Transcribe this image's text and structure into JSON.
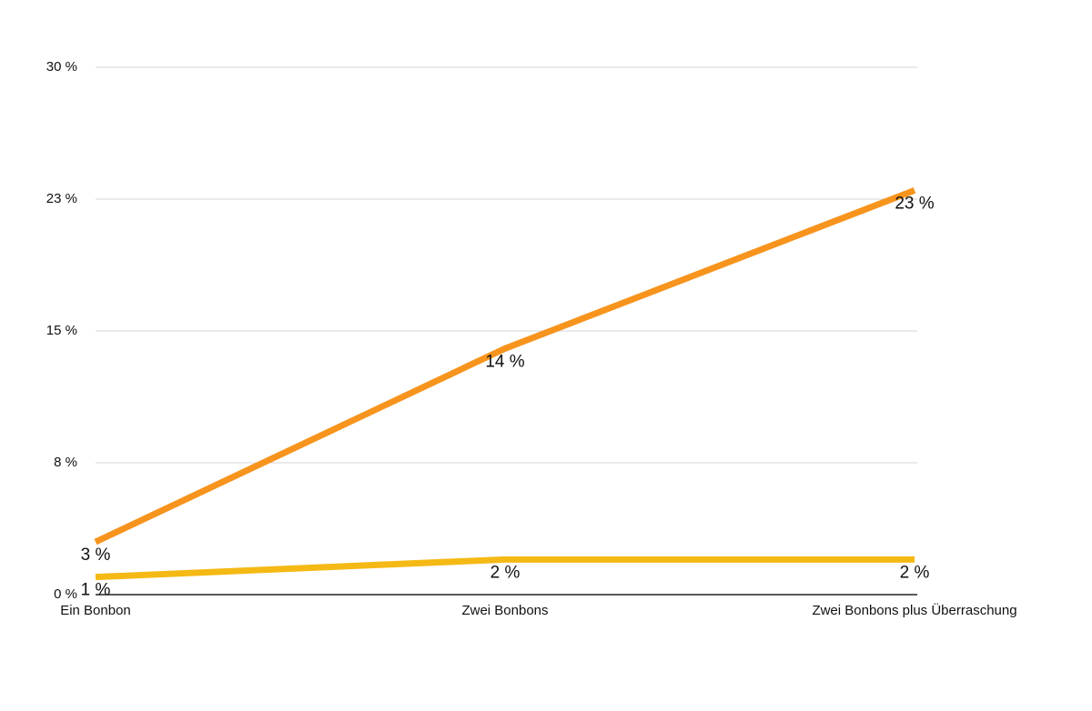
{
  "chart_data": {
    "type": "line",
    "categories": [
      "Ein Bonbon",
      "Zwei Bonbons",
      "Zwei Bonbons plus Überraschung"
    ],
    "series": [
      {
        "color": "#f7941d",
        "values": [
          3,
          14,
          23
        ],
        "value_labels": [
          "3 %",
          "14 %",
          "23 %"
        ]
      },
      {
        "color": "#f5b915",
        "values": [
          1,
          2,
          2
        ],
        "value_labels": [
          "1 %",
          "2 %",
          "2 %"
        ]
      }
    ],
    "ylim": [
      0,
      30
    ],
    "yticks": [
      {
        "value": 0,
        "label": "0 %"
      },
      {
        "value": 7.5,
        "label": "8 %"
      },
      {
        "value": 15,
        "label": "15 %"
      },
      {
        "value": 22.5,
        "label": "23 %"
      },
      {
        "value": 30,
        "label": "30 %"
      }
    ],
    "grid": true
  }
}
